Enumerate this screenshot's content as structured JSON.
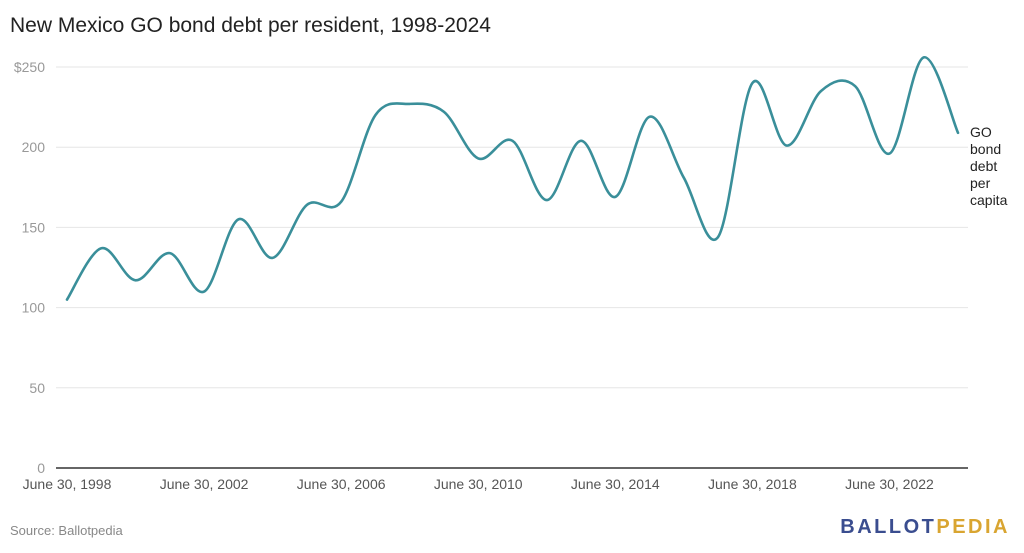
{
  "title": "New Mexico GO bond debt per resident, 1998-2024",
  "source": "Source: Ballotpedia",
  "logo": {
    "part1": "BALLOT",
    "part2": "PEDIA"
  },
  "colors": {
    "line": "#3a8f9a",
    "grid": "#e6e6e6",
    "axis": "#333333",
    "tick": "#999999",
    "logo_blue": "#3a4d8f",
    "logo_gold": "#d9a531"
  },
  "chart_data": {
    "type": "line",
    "title": "New Mexico GO bond debt per resident, 1998-2024",
    "xlabel": "",
    "ylabel": "",
    "ylim": [
      0,
      250
    ],
    "yticks": [
      0,
      50,
      100,
      150,
      200,
      250
    ],
    "ytick_labels": [
      "0",
      "50",
      "100",
      "150",
      "200",
      "$250"
    ],
    "xticks": [
      "June 30, 1998",
      "June 30, 2002",
      "June 30, 2006",
      "June 30, 2010",
      "June 30, 2014",
      "June 30, 2018",
      "June 30, 2022"
    ],
    "grid": true,
    "series": [
      {
        "name": "GO bond debt per capita",
        "label_lines": [
          "GO",
          "bond",
          "debt",
          "per",
          "capita"
        ],
        "x": [
          1998,
          1999,
          2000,
          2001,
          2002,
          2003,
          2004,
          2005,
          2006,
          2007,
          2008,
          2009,
          2010,
          2011,
          2012,
          2013,
          2014,
          2015,
          2016,
          2017,
          2018,
          2019,
          2020,
          2021,
          2022,
          2023,
          2024
        ],
        "y": [
          105,
          137,
          117,
          134,
          110,
          155,
          131,
          164,
          166,
          220,
          227,
          222,
          193,
          204,
          167,
          204,
          169,
          219,
          181,
          144,
          240,
          201,
          235,
          238,
          196,
          256,
          209
        ]
      }
    ]
  }
}
